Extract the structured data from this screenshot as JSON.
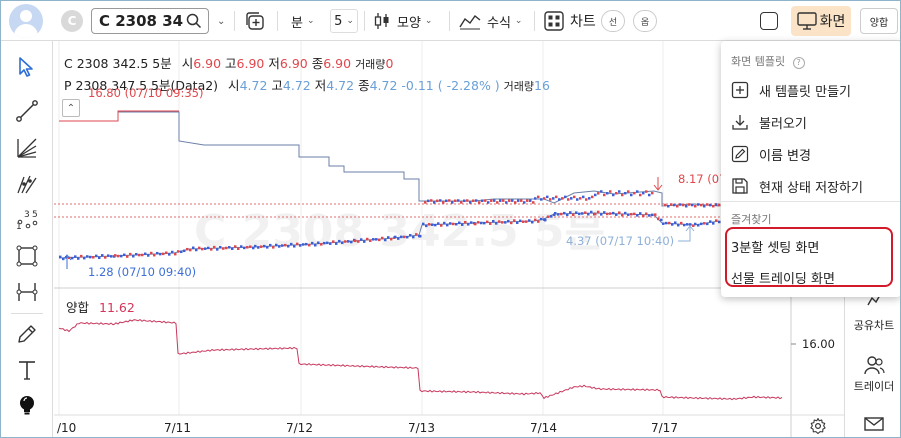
{
  "toolbar": {
    "symbol_circle": "C",
    "symbol": "C 2308 34",
    "interval_unit": "분",
    "interval_value": "5",
    "shape_label": "모양",
    "formula_label": "수식",
    "chart_label": "차트",
    "pill_a": "선",
    "pill_b": "옵",
    "screen_label": "화면",
    "right_pill": "양합"
  },
  "legend_c": {
    "name": "C 2308 342.5 5분",
    "open_label": "시",
    "open": "6.90",
    "high_label": "고",
    "high": "6.90",
    "low_label": "저",
    "low": "6.90",
    "close_label": "종",
    "close": "6.90",
    "volume_label": "거래량",
    "volume": "0"
  },
  "legend_p": {
    "name": "P 2308 347.5 5분(Data2)",
    "open_label": "시",
    "open": "4.72",
    "high_label": "고",
    "high": "4.72",
    "low_label": "저",
    "low": "4.72",
    "close_label": "종",
    "close": "4.72",
    "change": "-0.11",
    "change_pct": "( -2.28% )",
    "volume_label": "거래량",
    "volume": "16"
  },
  "annotations": {
    "c_high": "16.80 (07/10 09:35)",
    "c_low": "1.28 (07/10 09:40)",
    "p_high": "8.17 (07",
    "p_low": "4.37 (07/17 10:40)"
  },
  "watermark": "C 2308 342.5 5분",
  "oscillator": {
    "name": "양합",
    "value": "11.62",
    "axis_tick": "16.00"
  },
  "x_axis": {
    "ticks": [
      "/10",
      "7/11",
      "7/12",
      "7/13",
      "7/14",
      "7/17"
    ]
  },
  "menu": {
    "template_header": "화면 템플릿",
    "items": [
      {
        "label": "새 템플릿 만들기",
        "icon": "plus-square-icon"
      },
      {
        "label": "불러오기",
        "icon": "download-icon"
      },
      {
        "label": "이름 변경",
        "icon": "pencil-icon"
      },
      {
        "label": "현재 상태 저장하기",
        "icon": "save-icon"
      }
    ],
    "favorites_header": "즐겨찾기",
    "favorites": [
      "3분할 셋팅 화면",
      "선물 트레이딩 화면"
    ]
  },
  "right_strip": {
    "share_chart": "공유차트",
    "traders": "트레이더"
  },
  "colors": {
    "accent_orange_bg": "#fbe3c8",
    "candle_up": "#e0474c",
    "candle_down": "#3d5fd6",
    "oscillator": "#c8385e",
    "highlight_red": "#d21a2a"
  }
}
